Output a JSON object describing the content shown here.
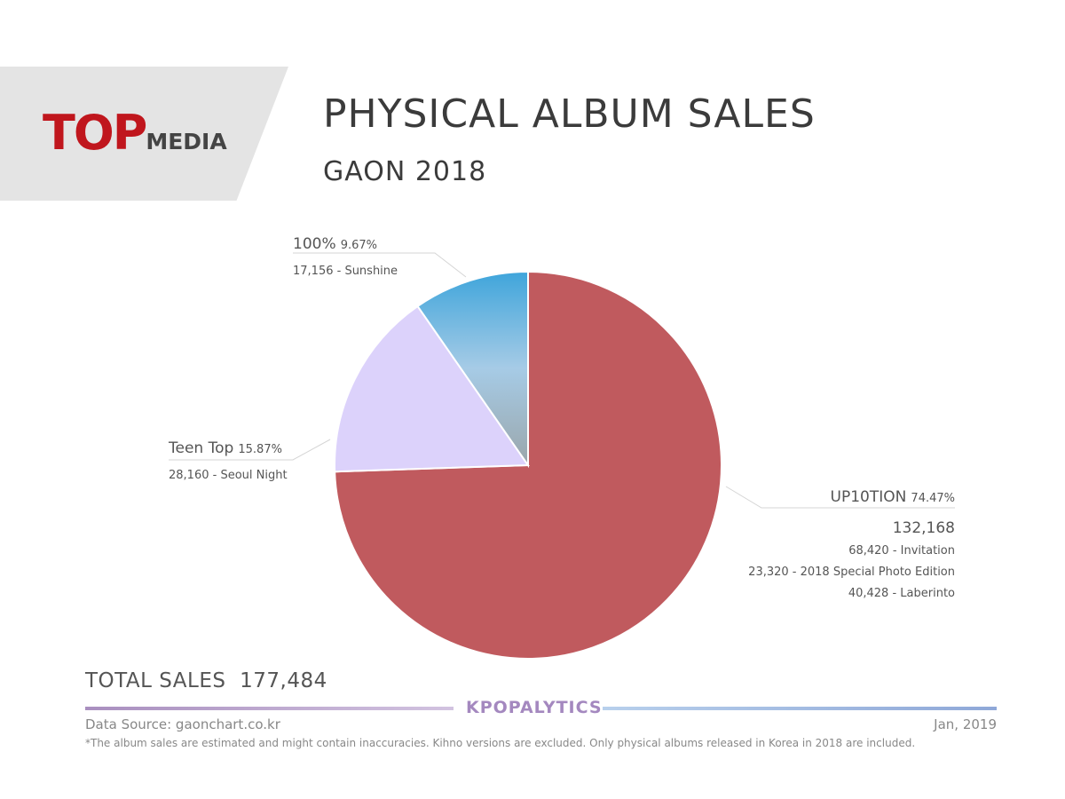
{
  "header": {
    "logo_top": "TOP",
    "logo_media": "MEDIA",
    "title": "PHYSICAL ALBUM SALES",
    "subtitle": "GAON 2018"
  },
  "chart_data": {
    "type": "pie",
    "title": "PHYSICAL ALBUM SALES",
    "subtitle": "GAON 2018",
    "slices": [
      {
        "name": "UP10TION",
        "percent_label": "74.47%",
        "value": 132168,
        "value_label": "132,168",
        "details": [
          "68,420 -  Invitation",
          "23,320 -  2018 Special Photo Edition",
          "40,428 - Laberinto"
        ],
        "color": "#c05a5e"
      },
      {
        "name": "Teen Top",
        "percent_label": "15.87%",
        "value": 28160,
        "details": [
          "28,160 - Seoul Night"
        ],
        "color": "#dcd2fb"
      },
      {
        "name": "100%",
        "percent_label": "9.67%",
        "value": 17156,
        "details": [
          "17,156 - Sunshine"
        ],
        "color_top": "#3fa5db",
        "color_mid": "#a6cbe6",
        "color_bottom": "#9aa6ab"
      }
    ],
    "total_label": "TOTAL SALES",
    "total_value": "177,484"
  },
  "footer": {
    "brand": "KPOPALYTICS",
    "source": "Data Source: gaonchart.co.kr",
    "date": "Jan, 2019",
    "note": "*The album sales are estimated and might contain inaccuracies. Kihno versions are excluded. Only physical albums released in Korea in 2018 are included."
  }
}
